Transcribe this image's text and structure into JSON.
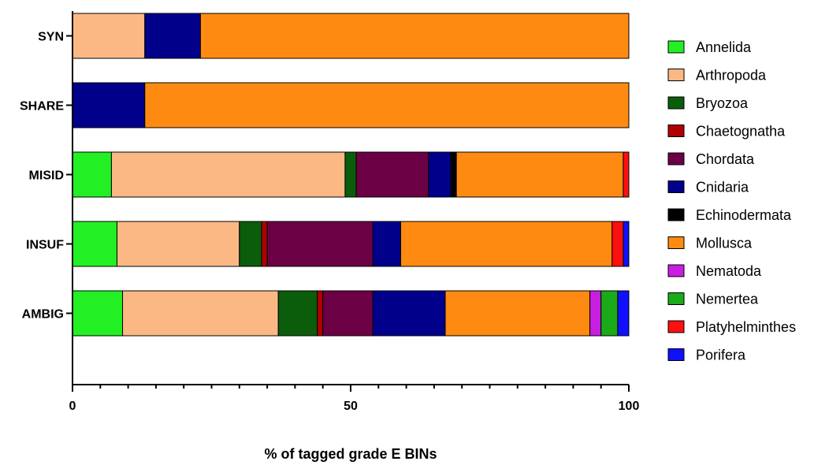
{
  "chart_data": {
    "type": "bar",
    "orientation": "horizontal",
    "stacked": true,
    "title": "",
    "xlabel": "% of tagged grade E BINs",
    "ylabel": "",
    "xlim": [
      0,
      100
    ],
    "xticks": [
      "0",
      "50",
      "100"
    ],
    "grid": false,
    "legend_position": "right",
    "categories": [
      "SYN",
      "SHARE",
      "MISID",
      "INSUF",
      "AMBIG"
    ],
    "series": [
      {
        "name": "Annelida",
        "color": "#22f022",
        "values": [
          0,
          0,
          7,
          8,
          9
        ]
      },
      {
        "name": "Arthropoda",
        "color": "#fbb885",
        "values": [
          13,
          0,
          42,
          22,
          28
        ]
      },
      {
        "name": "Bryozoa",
        "color": "#0b5c0b",
        "values": [
          0,
          0,
          2,
          4,
          7
        ]
      },
      {
        "name": "Chaetognatha",
        "color": "#b00000",
        "values": [
          0,
          0,
          0,
          1,
          1
        ]
      },
      {
        "name": "Chordata",
        "color": "#6b0045",
        "values": [
          0,
          0,
          13,
          19,
          9
        ]
      },
      {
        "name": "Cnidaria",
        "color": "#00008b",
        "values": [
          10,
          13,
          4,
          5,
          13
        ]
      },
      {
        "name": "Echinodermata",
        "color": "#000000",
        "values": [
          0,
          0,
          1,
          0,
          0
        ]
      },
      {
        "name": "Mollusca",
        "color": "#ff8a12",
        "values": [
          77,
          87,
          30,
          38,
          26
        ]
      },
      {
        "name": "Nematoda",
        "color": "#c81ee0",
        "values": [
          0,
          0,
          0,
          0,
          2
        ]
      },
      {
        "name": "Nemertea",
        "color": "#1aaa1a",
        "values": [
          0,
          0,
          0,
          0,
          3
        ]
      },
      {
        "name": "Platyhelminthes",
        "color": "#ff1010",
        "values": [
          0,
          0,
          1,
          2,
          0
        ]
      },
      {
        "name": "Porifera",
        "color": "#1010ff",
        "values": [
          0,
          0,
          0,
          1,
          2
        ]
      }
    ]
  }
}
